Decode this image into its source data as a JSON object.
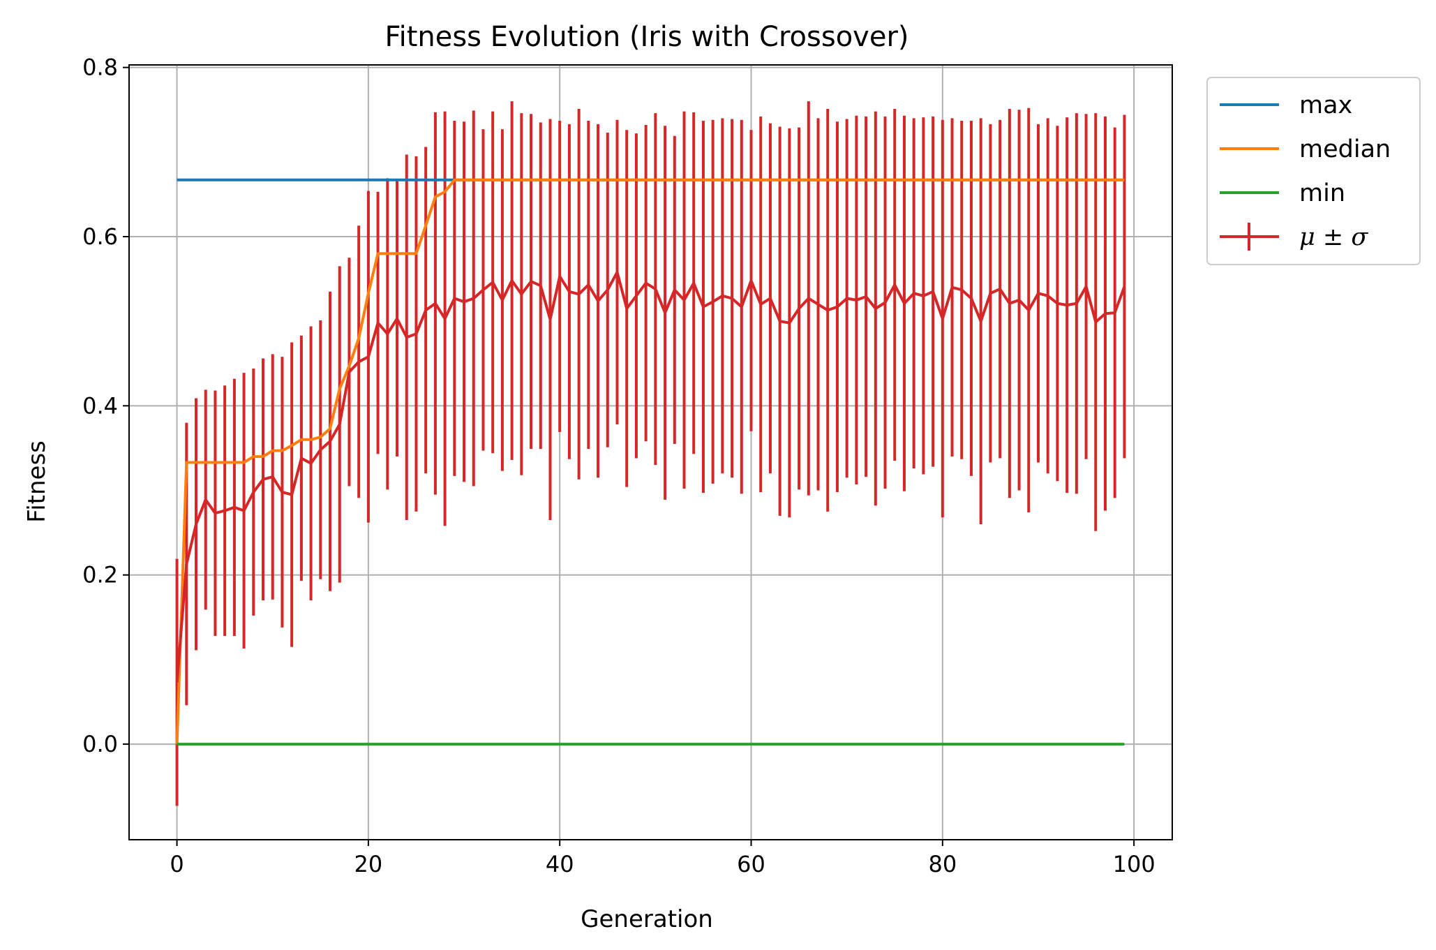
{
  "chart_data": {
    "type": "line",
    "title": "Fitness Evolution (Iris with Crossover)",
    "xlabel": "Generation",
    "ylabel": "Fitness",
    "xlim": [
      -5,
      104
    ],
    "ylim": [
      -0.113,
      0.803
    ],
    "xticks": [
      0,
      20,
      40,
      60,
      80,
      100
    ],
    "xtick_labels": [
      "0",
      "20",
      "40",
      "60",
      "80",
      "100"
    ],
    "yticks": [
      0.0,
      0.2,
      0.4,
      0.6,
      0.8
    ],
    "ytick_labels": [
      "0.0",
      "0.2",
      "0.4",
      "0.6",
      "0.8"
    ],
    "grid": true,
    "legend_position": "outside-top-right",
    "colors": {
      "max": "#1f77b4",
      "median": "#ff7f0e",
      "min": "#2ca02c",
      "mean": "#d62728",
      "grid": "#b0b0b0"
    },
    "legend": [
      {
        "key": "max",
        "label": "max"
      },
      {
        "key": "median",
        "label": "median"
      },
      {
        "key": "min",
        "label": "min"
      },
      {
        "key": "mean",
        "label": "μ ± σ"
      }
    ],
    "x": [
      0,
      1,
      2,
      3,
      4,
      5,
      6,
      7,
      8,
      9,
      10,
      11,
      12,
      13,
      14,
      15,
      16,
      17,
      18,
      19,
      20,
      21,
      22,
      23,
      24,
      25,
      26,
      27,
      28,
      29,
      30,
      31,
      32,
      33,
      34,
      35,
      36,
      37,
      38,
      39,
      40,
      41,
      42,
      43,
      44,
      45,
      46,
      47,
      48,
      49,
      50,
      51,
      52,
      53,
      54,
      55,
      56,
      57,
      58,
      59,
      60,
      61,
      62,
      63,
      64,
      65,
      66,
      67,
      68,
      69,
      70,
      71,
      72,
      73,
      74,
      75,
      76,
      77,
      78,
      79,
      80,
      81,
      82,
      83,
      84,
      85,
      86,
      87,
      88,
      89,
      90,
      91,
      92,
      93,
      94,
      95,
      96,
      97,
      98,
      99
    ],
    "series": [
      {
        "key": "max",
        "name": "max",
        "values": [
          0.667,
          0.667,
          0.667,
          0.667,
          0.667,
          0.667,
          0.667,
          0.667,
          0.667,
          0.667,
          0.667,
          0.667,
          0.667,
          0.667,
          0.667,
          0.667,
          0.667,
          0.667,
          0.667,
          0.667,
          0.667,
          0.667,
          0.667,
          0.667,
          0.667,
          0.667,
          0.667,
          0.667,
          0.667,
          0.667,
          0.667,
          0.667,
          0.667,
          0.667,
          0.667,
          0.667,
          0.667,
          0.667,
          0.667,
          0.667,
          0.667,
          0.667,
          0.667,
          0.667,
          0.667,
          0.667,
          0.667,
          0.667,
          0.667,
          0.667,
          0.667,
          0.667,
          0.667,
          0.667,
          0.667,
          0.667,
          0.667,
          0.667,
          0.667,
          0.667,
          0.667,
          0.667,
          0.667,
          0.667,
          0.667,
          0.667,
          0.667,
          0.667,
          0.667,
          0.667,
          0.667,
          0.667,
          0.667,
          0.667,
          0.667,
          0.667,
          0.667,
          0.667,
          0.667,
          0.667,
          0.667,
          0.667,
          0.667,
          0.667,
          0.667,
          0.667,
          0.667,
          0.667,
          0.667,
          0.667,
          0.667,
          0.667,
          0.667,
          0.667,
          0.667,
          0.667,
          0.667,
          0.667,
          0.667,
          0.667
        ]
      },
      {
        "key": "median",
        "name": "median",
        "values": [
          0.0,
          0.333,
          0.333,
          0.333,
          0.333,
          0.333,
          0.333,
          0.333,
          0.34,
          0.34,
          0.347,
          0.347,
          0.353,
          0.36,
          0.36,
          0.363,
          0.373,
          0.42,
          0.447,
          0.48,
          0.533,
          0.58,
          0.58,
          0.58,
          0.58,
          0.58,
          0.613,
          0.647,
          0.653,
          0.667,
          0.667,
          0.667,
          0.667,
          0.667,
          0.667,
          0.667,
          0.667,
          0.667,
          0.667,
          0.667,
          0.667,
          0.667,
          0.667,
          0.667,
          0.667,
          0.667,
          0.667,
          0.667,
          0.667,
          0.667,
          0.667,
          0.667,
          0.667,
          0.667,
          0.667,
          0.667,
          0.667,
          0.667,
          0.667,
          0.667,
          0.667,
          0.667,
          0.667,
          0.667,
          0.667,
          0.667,
          0.667,
          0.667,
          0.667,
          0.667,
          0.667,
          0.667,
          0.667,
          0.667,
          0.667,
          0.667,
          0.667,
          0.667,
          0.667,
          0.667,
          0.667,
          0.667,
          0.667,
          0.667,
          0.667,
          0.667,
          0.667,
          0.667,
          0.667,
          0.667,
          0.667,
          0.667,
          0.667,
          0.667,
          0.667,
          0.667,
          0.667,
          0.667,
          0.667,
          0.667
        ]
      },
      {
        "key": "min",
        "name": "min",
        "values": [
          0,
          0,
          0,
          0,
          0,
          0,
          0,
          0,
          0,
          0,
          0,
          0,
          0,
          0,
          0,
          0,
          0,
          0,
          0,
          0,
          0,
          0,
          0,
          0,
          0,
          0,
          0,
          0,
          0,
          0,
          0,
          0,
          0,
          0,
          0,
          0,
          0,
          0,
          0,
          0,
          0,
          0,
          0,
          0,
          0,
          0,
          0,
          0,
          0,
          0,
          0,
          0,
          0,
          0,
          0,
          0,
          0,
          0,
          0,
          0,
          0,
          0,
          0,
          0,
          0,
          0,
          0,
          0,
          0,
          0,
          0,
          0,
          0,
          0,
          0,
          0,
          0,
          0,
          0,
          0,
          0,
          0,
          0,
          0,
          0,
          0,
          0,
          0,
          0,
          0,
          0,
          0,
          0,
          0,
          0,
          0,
          0,
          0,
          0,
          0
        ]
      },
      {
        "key": "mean",
        "name": "μ ± σ",
        "values": [
          0.073,
          0.213,
          0.26,
          0.289,
          0.273,
          0.276,
          0.28,
          0.276,
          0.298,
          0.313,
          0.316,
          0.298,
          0.295,
          0.338,
          0.332,
          0.348,
          0.358,
          0.378,
          0.44,
          0.452,
          0.458,
          0.498,
          0.485,
          0.503,
          0.481,
          0.485,
          0.513,
          0.521,
          0.503,
          0.527,
          0.523,
          0.527,
          0.537,
          0.546,
          0.525,
          0.548,
          0.532,
          0.547,
          0.542,
          0.502,
          0.553,
          0.535,
          0.532,
          0.543,
          0.524,
          0.537,
          0.558,
          0.515,
          0.53,
          0.545,
          0.538,
          0.51,
          0.537,
          0.525,
          0.545,
          0.517,
          0.523,
          0.53,
          0.527,
          0.517,
          0.548,
          0.52,
          0.527,
          0.5,
          0.498,
          0.515,
          0.527,
          0.52,
          0.513,
          0.517,
          0.527,
          0.525,
          0.529,
          0.515,
          0.522,
          0.543,
          0.521,
          0.533,
          0.53,
          0.535,
          0.503,
          0.54,
          0.537,
          0.527,
          0.5,
          0.533,
          0.538,
          0.521,
          0.525,
          0.513,
          0.533,
          0.53,
          0.521,
          0.519,
          0.521,
          0.541,
          0.499,
          0.509,
          0.51,
          0.541
        ],
        "errors": [
          0.146,
          0.167,
          0.149,
          0.13,
          0.145,
          0.148,
          0.152,
          0.163,
          0.146,
          0.143,
          0.145,
          0.16,
          0.18,
          0.145,
          0.162,
          0.153,
          0.177,
          0.187,
          0.135,
          0.161,
          0.196,
          0.155,
          0.184,
          0.163,
          0.216,
          0.21,
          0.193,
          0.226,
          0.245,
          0.21,
          0.213,
          0.222,
          0.19,
          0.202,
          0.202,
          0.212,
          0.214,
          0.198,
          0.193,
          0.237,
          0.184,
          0.198,
          0.219,
          0.194,
          0.209,
          0.186,
          0.18,
          0.211,
          0.192,
          0.187,
          0.208,
          0.221,
          0.182,
          0.223,
          0.202,
          0.22,
          0.215,
          0.21,
          0.212,
          0.221,
          0.178,
          0.222,
          0.207,
          0.23,
          0.23,
          0.214,
          0.233,
          0.22,
          0.238,
          0.219,
          0.212,
          0.218,
          0.213,
          0.233,
          0.22,
          0.208,
          0.222,
          0.207,
          0.211,
          0.207,
          0.235,
          0.2,
          0.2,
          0.21,
          0.24,
          0.2,
          0.2,
          0.23,
          0.225,
          0.239,
          0.2,
          0.21,
          0.21,
          0.222,
          0.225,
          0.204,
          0.247,
          0.233,
          0.219,
          0.203
        ]
      }
    ]
  }
}
